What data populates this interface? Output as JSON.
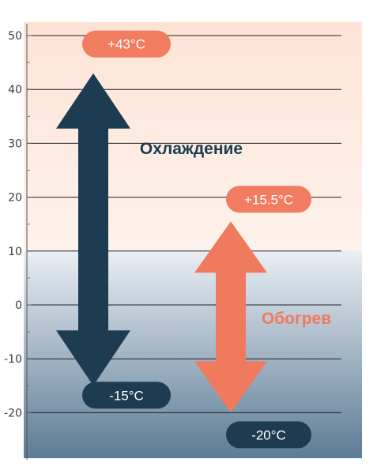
{
  "chart_data": {
    "type": "range-arrows",
    "y_ticks": [
      50,
      40,
      30,
      20,
      10,
      0,
      -10,
      -20
    ],
    "ylim": [
      -28,
      53
    ],
    "grid": true,
    "ranges": [
      {
        "name": "Охлаждение",
        "min": -15,
        "max": 43,
        "min_label": "-15°C",
        "max_label": "+43°C",
        "color": "#1d3c52"
      },
      {
        "name": "Обогрев",
        "min": -20,
        "max": 15.5,
        "min_label": "-20°C",
        "max_label": "+15.5°C",
        "color": "#f07a5e"
      }
    ]
  },
  "colors": {
    "warm_top": "#fde3d6",
    "warm_bottom": "#fdf2ec",
    "cold_top": "#e9eef3",
    "cold_bottom": "#5d7c96",
    "pill_warm": "#f17c60",
    "pill_cold": "#1d3c52",
    "grid": "#1f1f1f",
    "tick_text": "#3c3c3c"
  }
}
